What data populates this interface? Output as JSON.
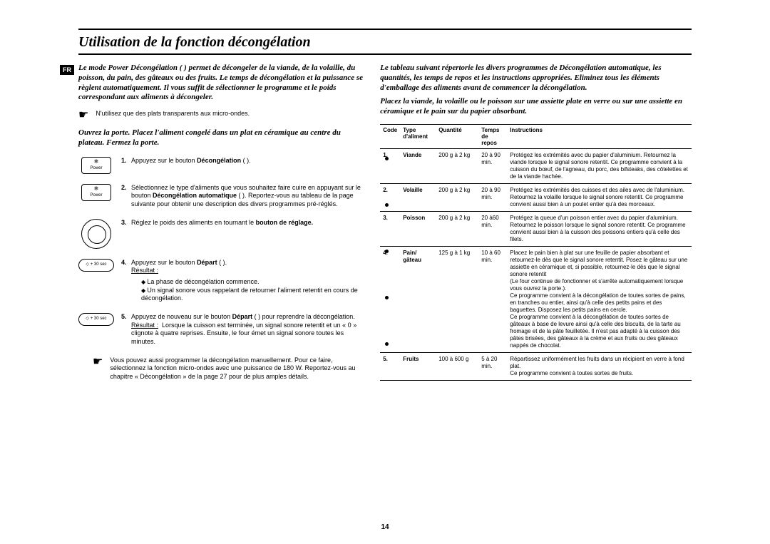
{
  "page": {
    "title": "Utilisation de la fonction décongélation",
    "language_tag": "FR",
    "page_number": "14"
  },
  "left": {
    "intro": "Le mode Power Décongélation ( ) permet de décongeler de la viande, de la volaille, du poisson, du pain, des gâteaux ou des fruits. Le temps de décongélation et la puissance se règlent automatiquement. Il vous suffit de sélectionner le programme et le poids correspondant aux aliments à décongeler.",
    "note_pointer": "☛",
    "note": "N'utilisez que des plats transparents aux micro-ondes.",
    "sub_intro": "Ouvrez la porte. Placez l'aliment congelé dans un plat en céramique au centre du plateau. Fermez la porte.",
    "steps": [
      {
        "num": "1.",
        "icon": "power",
        "text_html": "Appuyez sur le bouton <b>Décongélation</b> ( )."
      },
      {
        "num": "2.",
        "icon": "power",
        "text_html": "Sélectionnez le type d'aliments que vous souhaitez faire cuire en appuyant sur le bouton <b>Décongélation automatique</b> ( ). Reportez-vous au tableau de la page suivante pour obtenir une description des divers programmes pré-réglés."
      },
      {
        "num": "3.",
        "icon": "dial",
        "text_html": "Réglez le poids des aliments en tournant le <b>bouton de réglage.</b>"
      },
      {
        "num": "4.",
        "icon": "oval",
        "text_html": "Appuyez sur le bouton <b>Départ</b> ( ).<br><span class=\"result-label\">Résultat :</span>",
        "bullets": [
          "La phase de décongélation commence.",
          "Un signal sonore vous rappelant de retourner l'aliment retentit en cours de décongélation."
        ]
      },
      {
        "num": "5.",
        "icon": "oval",
        "text_html": "Appuyez de nouveau sur le bouton <b>Départ</b> ( ) pour reprendre la décongélation.<br><span class=\"result-label\">Résultat :</span>&nbsp;&nbsp;Lorsque la cuisson est terminée, un signal sonore retentit et un « 0 » clignote à quatre reprises. Ensuite, le four émet un signal sonore toutes les minutes."
      }
    ],
    "manual_note_pointer": "☛",
    "manual_note": "Vous pouvez aussi programmer la décongélation manuellement. Pour ce faire, sélectionnez la fonction micro-ondes avec une puissance de 180 W. Reportez-vous au chapitre « Décongélation » de la page 27 pour de plus amples détails.",
    "icon_labels": {
      "power": "Power",
      "oval": "+ 30 sec"
    }
  },
  "right": {
    "intro1": "Le tableau suivant répertorie les divers programmes de Décongélation automatique, les quantités, les temps de repos et les instructions appropriées. Eliminez tous les éléments d'emballage des aliments avant de commencer la décongélation.",
    "intro2": "Placez la viande, la volaille ou le poisson sur une assiette plate en verre ou sur une assiette en céramique et le pain sur du papier absorbant.",
    "headers": {
      "code": "Code",
      "type": "Type d'aliment",
      "qty": "Quantité",
      "time": "Temps de repos",
      "instr": "Instructions"
    },
    "rows": [
      {
        "code": "1.",
        "type": "Viande",
        "qty": "200 g à 2 kg",
        "time": "20 à 90 min.",
        "instr": "Protégez les extrémités avec du papier d'aluminium. Retournez la viande lorsque le signal sonore retentit. Ce programme convient à la cuisson du bœuf, de l'agneau, du porc, des bifsteaks, des côtelettes et de la viande hachée."
      },
      {
        "code": "2.",
        "type": "Volaille",
        "qty": "200 g à 2 kg",
        "time": "20 à 90 min.",
        "instr": "Protégez les extrémités des cuisses et des ailes avec de l'aluminium. Retournez la volaille lorsque le signal sonore retentit. Ce programme convient aussi bien à un poulet entier qu'à des morceaux."
      },
      {
        "code": "3.",
        "type": "Poisson",
        "qty": "200 g à 2 kg",
        "time": "20 à60 min.",
        "instr": "Protégez la queue d'un poisson entier avec du papier d'aluminium. Retournez le poisson lorsque le signal sonore retentit. Ce programme convient aussi bien à la cuisson des poissons entiers qu'à celle des filets."
      },
      {
        "code": "4.",
        "type": "Pain/ gâteau",
        "qty": "125 g à 1 kg",
        "time": "10 à 60 min.",
        "instr": "Placez le pain bien à plat sur une feuille de papier absorbant et retournez-le dès que le signal sonore retentit. Posez le gâteau sur une assiette en céramique et, si possible, retournez-le dès que le signal sonore retentit\n(Le four continue de fonctionner et s'arrête automatiquement lorsque vous ouvrez la porte.).\nCe programme convient à la décongélation de toutes sortes de pains, en tranches ou entier, ainsi qu'à celle des petits pains et des baguettes. Disposez les petits pains en cercle.\nCe programme convient à la décongélation de toutes sortes de gâteaux à base de levure ainsi qu'à celle des biscuits, de la tarte au fromage et de la pâte feuilletée. Il n'est pas adapté à la cuisson des pâtes brisées, des gâteaux à la crème et aux fruits ou des gâteaux nappés de chocolat."
      },
      {
        "code": "5.",
        "type": "Fruits",
        "qty": "100 à 600 g",
        "time": "5 à 20 min.",
        "instr": "Répartissez uniformément les fruits dans un récipient en verre à fond plat.\nCe programme convient à toutes sortes de fruits."
      }
    ]
  }
}
